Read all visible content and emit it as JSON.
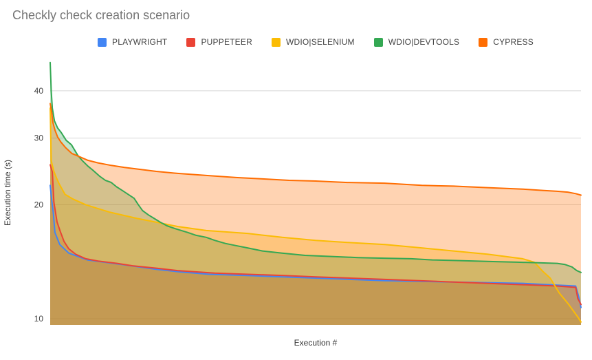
{
  "chart_data": {
    "type": "area",
    "title": "Checkly check creation scenario",
    "xlabel": "Execution #",
    "ylabel": "Execution time (s)",
    "x_axis": {
      "tick_labels_visible": false,
      "x_unit": "execution index normalized to 0-100 (sorted descending execution times)"
    },
    "y_axis": {
      "scale": "log",
      "ticks": [
        40,
        30,
        20,
        10
      ],
      "min": 9.6,
      "max": 48
    },
    "legend_position": "top",
    "grid": true,
    "fill_opacity": 0.3,
    "series": [
      {
        "name": "PLAYWRIGHT",
        "color": "#4285F4",
        "points": [
          [
            0,
            22.5
          ],
          [
            0.3,
            20.5
          ],
          [
            0.6,
            19.0
          ],
          [
            0.9,
            16.9
          ],
          [
            1.8,
            15.7
          ],
          [
            3.5,
            14.9
          ],
          [
            7,
            14.3
          ],
          [
            13.5,
            13.9
          ],
          [
            20,
            13.5
          ],
          [
            24.3,
            13.3
          ],
          [
            30,
            13.1
          ],
          [
            37,
            13.0
          ],
          [
            50,
            12.8
          ],
          [
            63,
            12.6
          ],
          [
            76,
            12.5
          ],
          [
            89,
            12.4
          ],
          [
            94,
            12.3
          ],
          [
            99,
            12.2
          ],
          [
            99.6,
            11.4
          ],
          [
            100,
            10.7
          ]
        ]
      },
      {
        "name": "PUPPETEER",
        "color": "#EA4335",
        "points": [
          [
            0,
            25.5
          ],
          [
            0.4,
            24.4
          ],
          [
            0.7,
            20.3
          ],
          [
            1.3,
            18.0
          ],
          [
            1.9,
            17.0
          ],
          [
            2.6,
            16.0
          ],
          [
            3.5,
            15.3
          ],
          [
            4.8,
            14.8
          ],
          [
            6.7,
            14.4
          ],
          [
            9,
            14.2
          ],
          [
            12.6,
            14.0
          ],
          [
            15.5,
            13.8
          ],
          [
            20,
            13.6
          ],
          [
            24,
            13.4
          ],
          [
            31,
            13.2
          ],
          [
            44,
            13.0
          ],
          [
            50,
            12.9
          ],
          [
            63,
            12.7
          ],
          [
            76,
            12.5
          ],
          [
            89,
            12.3
          ],
          [
            95.5,
            12.2
          ],
          [
            99,
            12.1
          ],
          [
            99.4,
            11.3
          ],
          [
            100,
            10.9
          ]
        ]
      },
      {
        "name": "WDIO|SELENIUM",
        "color": "#FBBC04",
        "points": [
          [
            0,
            36.0
          ],
          [
            0.2,
            26.2
          ],
          [
            0.4,
            25.4
          ],
          [
            0.7,
            24.5
          ],
          [
            1.2,
            23.5
          ],
          [
            1.7,
            22.7
          ],
          [
            2.8,
            21.3
          ],
          [
            4.3,
            20.7
          ],
          [
            6.7,
            20.0
          ],
          [
            8.7,
            19.6
          ],
          [
            11.3,
            19.1
          ],
          [
            16.4,
            18.4
          ],
          [
            20.7,
            17.9
          ],
          [
            24.2,
            17.5
          ],
          [
            29.4,
            17.1
          ],
          [
            37.2,
            16.8
          ],
          [
            43.7,
            16.4
          ],
          [
            50,
            16.1
          ],
          [
            56,
            15.9
          ],
          [
            63.1,
            15.7
          ],
          [
            69.6,
            15.4
          ],
          [
            76,
            15.1
          ],
          [
            82.5,
            14.8
          ],
          [
            89,
            14.4
          ],
          [
            91.2,
            14.1
          ],
          [
            92.9,
            13.3
          ],
          [
            94.2,
            12.8
          ],
          [
            95.9,
            11.7
          ],
          [
            97.7,
            10.9
          ],
          [
            99.4,
            10.1
          ],
          [
            100,
            9.8
          ]
        ]
      },
      {
        "name": "WDIO|DEVTOOLS",
        "color": "#34A853",
        "points": [
          [
            0,
            47.5
          ],
          [
            0.2,
            40.0
          ],
          [
            0.4,
            36.0
          ],
          [
            0.8,
            33.3
          ],
          [
            1.4,
            31.9
          ],
          [
            2.1,
            31.0
          ],
          [
            3,
            29.6
          ],
          [
            4,
            28.8
          ],
          [
            5.2,
            27.0
          ],
          [
            6,
            26.2
          ],
          [
            7.1,
            25.3
          ],
          [
            8,
            24.7
          ],
          [
            9.3,
            23.8
          ],
          [
            10.4,
            23.2
          ],
          [
            11.5,
            22.9
          ],
          [
            12.5,
            22.3
          ],
          [
            13.6,
            21.8
          ],
          [
            14.7,
            21.3
          ],
          [
            15.8,
            20.8
          ],
          [
            16.6,
            20.0
          ],
          [
            17.4,
            19.3
          ],
          [
            18.5,
            18.8
          ],
          [
            19.6,
            18.4
          ],
          [
            20.7,
            18.0
          ],
          [
            22,
            17.6
          ],
          [
            23.5,
            17.3
          ],
          [
            25.9,
            16.9
          ],
          [
            27.5,
            16.6
          ],
          [
            29.4,
            16.4
          ],
          [
            31,
            16.1
          ],
          [
            33,
            15.8
          ],
          [
            35,
            15.6
          ],
          [
            37,
            15.4
          ],
          [
            40,
            15.1
          ],
          [
            43.7,
            14.9
          ],
          [
            48,
            14.7
          ],
          [
            53,
            14.6
          ],
          [
            58,
            14.5
          ],
          [
            63,
            14.45
          ],
          [
            68,
            14.4
          ],
          [
            72,
            14.3
          ],
          [
            76,
            14.25
          ],
          [
            80,
            14.2
          ],
          [
            84,
            14.15
          ],
          [
            88,
            14.1
          ],
          [
            92,
            14.05
          ],
          [
            95.5,
            14.0
          ],
          [
            97,
            13.9
          ],
          [
            98.3,
            13.7
          ],
          [
            99.2,
            13.4
          ],
          [
            100,
            13.25
          ]
        ]
      },
      {
        "name": "CYPRESS",
        "color": "#FF6D01",
        "points": [
          [
            0,
            37.0
          ],
          [
            0.3,
            35.0
          ],
          [
            0.5,
            33.0
          ],
          [
            0.9,
            31.5
          ],
          [
            1.4,
            30.2
          ],
          [
            2,
            29.3
          ],
          [
            2.9,
            28.3
          ],
          [
            4.1,
            27.3
          ],
          [
            5.2,
            26.9
          ],
          [
            7.1,
            26.2
          ],
          [
            9,
            25.8
          ],
          [
            11.5,
            25.4
          ],
          [
            14,
            25.1
          ],
          [
            17,
            24.8
          ],
          [
            20,
            24.5
          ],
          [
            24,
            24.2
          ],
          [
            29.4,
            23.9
          ],
          [
            35,
            23.6
          ],
          [
            40,
            23.4
          ],
          [
            45,
            23.2
          ],
          [
            50,
            23.1
          ],
          [
            56,
            22.9
          ],
          [
            63,
            22.8
          ],
          [
            70,
            22.5
          ],
          [
            76,
            22.4
          ],
          [
            82,
            22.2
          ],
          [
            89,
            22.0
          ],
          [
            93,
            21.8
          ],
          [
            95.5,
            21.7
          ],
          [
            97.5,
            21.6
          ],
          [
            99,
            21.4
          ],
          [
            100,
            21.2
          ]
        ]
      }
    ]
  },
  "colors": {
    "background": "#ffffff",
    "title_text": "#757575",
    "legend_text": "#424242",
    "tick_text": "#424242",
    "axis_title_text": "#333333",
    "gridline": "#d6d6d6"
  }
}
